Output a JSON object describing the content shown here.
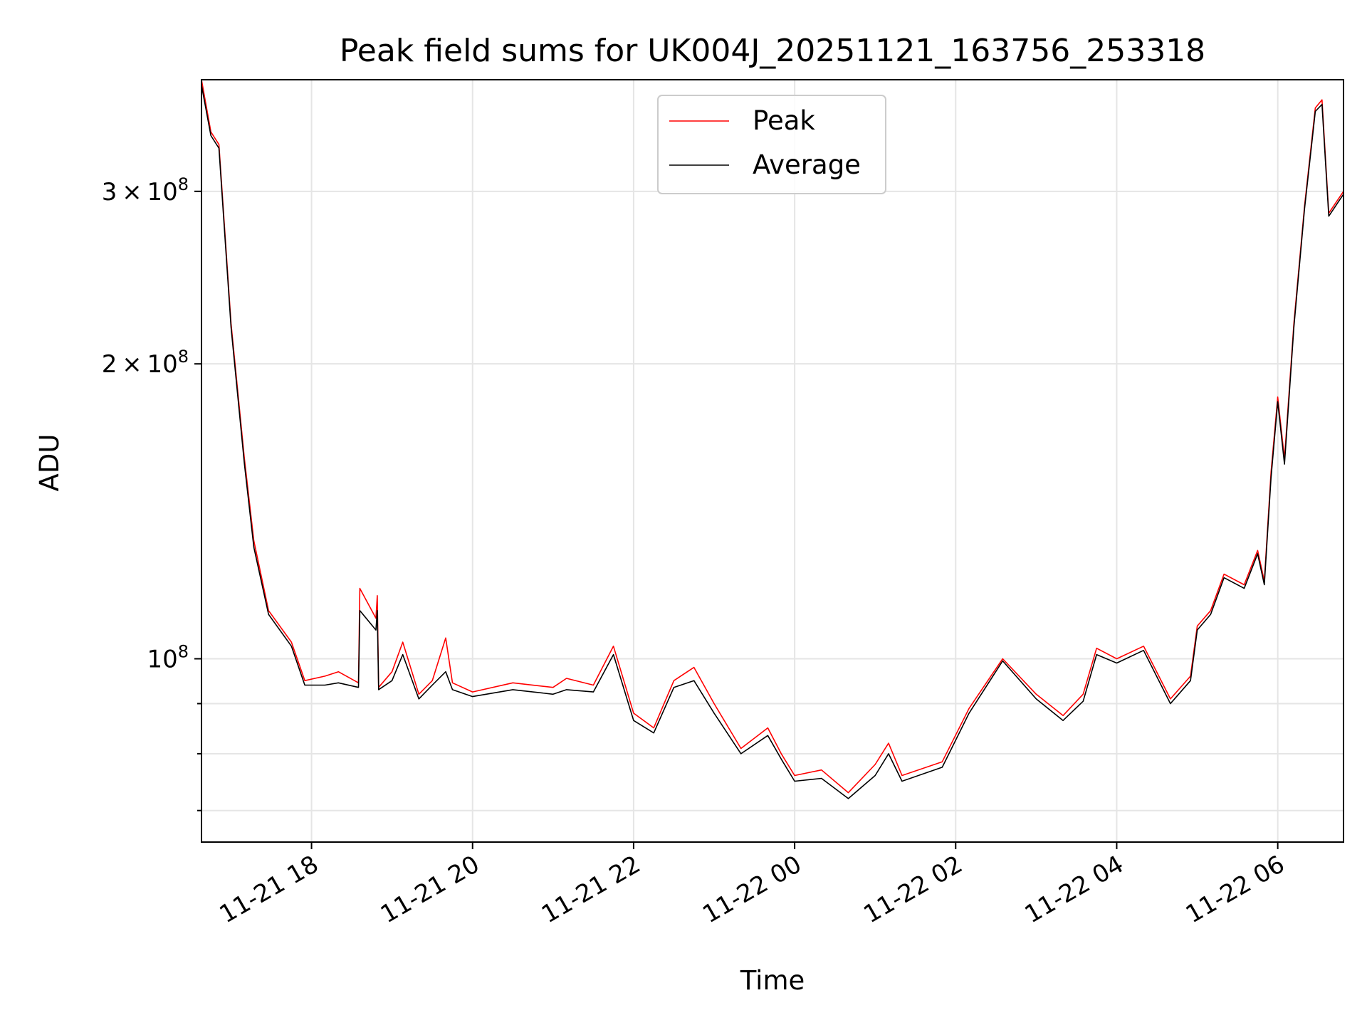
{
  "chart_data": {
    "type": "line",
    "title": "Peak field sums for UK004J_20251121_163756_253318",
    "xlabel": "Time",
    "ylabel": "ADU",
    "x_range": [
      "2025-11-21T16:38",
      "2025-11-22T06:49"
    ],
    "y_range": [
      65000000,
      390000000
    ],
    "y_scale": "log",
    "grid": true,
    "legend_position": "top-center",
    "x_ticks": [
      "11-21 18",
      "11-21 20",
      "11-21 22",
      "11-22 00",
      "11-22 02",
      "11-22 04",
      "11-22 06"
    ],
    "x_tick_times": [
      "2025-11-21T18:00",
      "2025-11-21T20:00",
      "2025-11-21T22:00",
      "2025-11-22T00:00",
      "2025-11-22T02:00",
      "2025-11-22T04:00",
      "2025-11-22T06:00"
    ],
    "y_ticks": [
      {
        "value": 100000000,
        "mantissa": "",
        "exponent": "8"
      },
      {
        "value": 200000000,
        "mantissa": "2",
        "exponent": "8"
      },
      {
        "value": 300000000,
        "mantissa": "3",
        "exponent": "8"
      }
    ],
    "y_minor_ticks": [
      70000000,
      80000000,
      90000000,
      400000000
    ],
    "series": [
      {
        "name": "Peak",
        "color": "#ff0000",
        "points": [
          [
            "2025-11-21T16:38",
            390000000
          ],
          [
            "2025-11-21T16:45",
            345000000
          ],
          [
            "2025-11-21T16:51",
            335000000
          ],
          [
            "2025-11-21T17:00",
            220000000
          ],
          [
            "2025-11-21T17:10",
            160000000
          ],
          [
            "2025-11-21T17:17",
            132000000
          ],
          [
            "2025-11-21T17:28",
            112000000
          ],
          [
            "2025-11-21T17:45",
            104000000
          ],
          [
            "2025-11-21T17:55",
            95000000
          ],
          [
            "2025-11-21T18:10",
            96000000
          ],
          [
            "2025-11-21T18:20",
            97000000
          ],
          [
            "2025-11-21T18:35",
            94500000
          ],
          [
            "2025-11-21T18:36",
            118000000
          ],
          [
            "2025-11-21T18:48",
            110000000
          ],
          [
            "2025-11-21T18:49",
            116000000
          ],
          [
            "2025-11-21T18:50",
            93500000
          ],
          [
            "2025-11-21T19:00",
            97000000
          ],
          [
            "2025-11-21T19:08",
            104000000
          ],
          [
            "2025-11-21T19:20",
            92000000
          ],
          [
            "2025-11-21T19:30",
            95000000
          ],
          [
            "2025-11-21T19:40",
            105000000
          ],
          [
            "2025-11-21T19:45",
            94500000
          ],
          [
            "2025-11-21T20:00",
            92500000
          ],
          [
            "2025-11-21T20:30",
            94500000
          ],
          [
            "2025-11-21T21:00",
            93500000
          ],
          [
            "2025-11-21T21:10",
            95500000
          ],
          [
            "2025-11-21T21:30",
            94000000
          ],
          [
            "2025-11-21T21:45",
            103000000
          ],
          [
            "2025-11-21T22:00",
            88000000
          ],
          [
            "2025-11-21T22:15",
            85000000
          ],
          [
            "2025-11-21T22:30",
            95000000
          ],
          [
            "2025-11-21T22:45",
            98000000
          ],
          [
            "2025-11-21T23:00",
            90000000
          ],
          [
            "2025-11-21T23:20",
            81000000
          ],
          [
            "2025-11-21T23:40",
            85000000
          ],
          [
            "2025-11-21T23:50",
            80000000
          ],
          [
            "2025-11-22T00:00",
            76000000
          ],
          [
            "2025-11-22T00:20",
            77000000
          ],
          [
            "2025-11-22T00:40",
            73000000
          ],
          [
            "2025-11-22T01:00",
            78000000
          ],
          [
            "2025-11-22T01:10",
            82000000
          ],
          [
            "2025-11-22T01:20",
            76000000
          ],
          [
            "2025-11-22T01:50",
            78500000
          ],
          [
            "2025-11-22T02:10",
            89000000
          ],
          [
            "2025-11-22T02:35",
            100000000
          ],
          [
            "2025-11-22T03:00",
            92000000
          ],
          [
            "2025-11-22T03:20",
            87500000
          ],
          [
            "2025-11-22T03:35",
            92000000
          ],
          [
            "2025-11-22T03:45",
            102500000
          ],
          [
            "2025-11-22T04:00",
            100000000
          ],
          [
            "2025-11-22T04:20",
            103000000
          ],
          [
            "2025-11-22T04:40",
            91000000
          ],
          [
            "2025-11-22T04:55",
            96000000
          ],
          [
            "2025-11-22T05:00",
            108000000
          ],
          [
            "2025-11-22T05:10",
            112000000
          ],
          [
            "2025-11-22T05:20",
            122000000
          ],
          [
            "2025-11-22T05:35",
            119000000
          ],
          [
            "2025-11-22T05:45",
            129000000
          ],
          [
            "2025-11-22T05:50",
            120000000
          ],
          [
            "2025-11-22T05:55",
            155000000
          ],
          [
            "2025-11-22T06:00",
            185000000
          ],
          [
            "2025-11-22T06:05",
            160000000
          ],
          [
            "2025-11-22T06:12",
            220000000
          ],
          [
            "2025-11-22T06:20",
            290000000
          ],
          [
            "2025-11-22T06:28",
            365000000
          ],
          [
            "2025-11-22T06:33",
            372000000
          ],
          [
            "2025-11-22T06:38",
            285000000
          ],
          [
            "2025-11-22T06:49",
            300000000
          ]
        ]
      },
      {
        "name": "Average",
        "color": "#000000",
        "points": [
          [
            "2025-11-21T16:38",
            385000000
          ],
          [
            "2025-11-21T16:45",
            342000000
          ],
          [
            "2025-11-21T16:51",
            332000000
          ],
          [
            "2025-11-21T17:00",
            218000000
          ],
          [
            "2025-11-21T17:10",
            158000000
          ],
          [
            "2025-11-21T17:17",
            130000000
          ],
          [
            "2025-11-21T17:28",
            111000000
          ],
          [
            "2025-11-21T17:45",
            103000000
          ],
          [
            "2025-11-21T17:55",
            94000000
          ],
          [
            "2025-11-21T18:10",
            94000000
          ],
          [
            "2025-11-21T18:20",
            94500000
          ],
          [
            "2025-11-21T18:35",
            93500000
          ],
          [
            "2025-11-21T18:36",
            112000000
          ],
          [
            "2025-11-21T18:48",
            107000000
          ],
          [
            "2025-11-21T18:49",
            112000000
          ],
          [
            "2025-11-21T18:50",
            93000000
          ],
          [
            "2025-11-21T19:00",
            95000000
          ],
          [
            "2025-11-21T19:08",
            101000000
          ],
          [
            "2025-11-21T19:20",
            91000000
          ],
          [
            "2025-11-21T19:30",
            94000000
          ],
          [
            "2025-11-21T19:40",
            97000000
          ],
          [
            "2025-11-21T19:45",
            93000000
          ],
          [
            "2025-11-21T20:00",
            91500000
          ],
          [
            "2025-11-21T20:30",
            93000000
          ],
          [
            "2025-11-21T21:00",
            92000000
          ],
          [
            "2025-11-21T21:10",
            93000000
          ],
          [
            "2025-11-21T21:30",
            92500000
          ],
          [
            "2025-11-21T21:45",
            101000000
          ],
          [
            "2025-11-21T22:00",
            86500000
          ],
          [
            "2025-11-21T22:15",
            84000000
          ],
          [
            "2025-11-21T22:30",
            93500000
          ],
          [
            "2025-11-21T22:45",
            95000000
          ],
          [
            "2025-11-21T23:00",
            88000000
          ],
          [
            "2025-11-21T23:20",
            80000000
          ],
          [
            "2025-11-21T23:40",
            83500000
          ],
          [
            "2025-11-21T23:50",
            79000000
          ],
          [
            "2025-11-22T00:00",
            75000000
          ],
          [
            "2025-11-22T00:20",
            75500000
          ],
          [
            "2025-11-22T00:40",
            72000000
          ],
          [
            "2025-11-22T01:00",
            76000000
          ],
          [
            "2025-11-22T01:10",
            80000000
          ],
          [
            "2025-11-22T01:20",
            75000000
          ],
          [
            "2025-11-22T01:50",
            77500000
          ],
          [
            "2025-11-22T02:10",
            88000000
          ],
          [
            "2025-11-22T02:35",
            99500000
          ],
          [
            "2025-11-22T03:00",
            91000000
          ],
          [
            "2025-11-22T03:20",
            86500000
          ],
          [
            "2025-11-22T03:35",
            90500000
          ],
          [
            "2025-11-22T03:45",
            101000000
          ],
          [
            "2025-11-22T04:00",
            99000000
          ],
          [
            "2025-11-22T04:20",
            102000000
          ],
          [
            "2025-11-22T04:40",
            90000000
          ],
          [
            "2025-11-22T04:55",
            95000000
          ],
          [
            "2025-11-22T05:00",
            107000000
          ],
          [
            "2025-11-22T05:10",
            111000000
          ],
          [
            "2025-11-22T05:20",
            121000000
          ],
          [
            "2025-11-22T05:35",
            118000000
          ],
          [
            "2025-11-22T05:45",
            128000000
          ],
          [
            "2025-11-22T05:50",
            119000000
          ],
          [
            "2025-11-22T05:55",
            153000000
          ],
          [
            "2025-11-22T06:00",
            183000000
          ],
          [
            "2025-11-22T06:05",
            158000000
          ],
          [
            "2025-11-22T06:12",
            218000000
          ],
          [
            "2025-11-22T06:20",
            288000000
          ],
          [
            "2025-11-22T06:28",
            362000000
          ],
          [
            "2025-11-22T06:33",
            368000000
          ],
          [
            "2025-11-22T06:38",
            283000000
          ],
          [
            "2025-11-22T06:49",
            298000000
          ]
        ]
      }
    ]
  }
}
